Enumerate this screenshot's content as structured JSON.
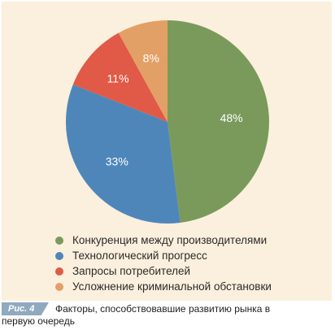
{
  "chart_data": {
    "type": "pie",
    "title": "",
    "slices": [
      {
        "label": "Конкуренция между производителями",
        "value": 48,
        "display": "48%",
        "color": "#7a9a5c"
      },
      {
        "label": "Технологический прогресс",
        "value": 33,
        "display": "33%",
        "color": "#4e86ba"
      },
      {
        "label": "Запросы потребителей",
        "value": 11,
        "display": "11%",
        "color": "#e05a47"
      },
      {
        "label": "Усложнение криминальной обстановки",
        "value": 8,
        "display": "8%",
        "color": "#e3a066"
      }
    ],
    "legend_position": "bottom"
  },
  "caption": {
    "figure_label": "Рис. 4",
    "text": "Факторы, способствовавшие развитию рынка в первую очередь"
  }
}
